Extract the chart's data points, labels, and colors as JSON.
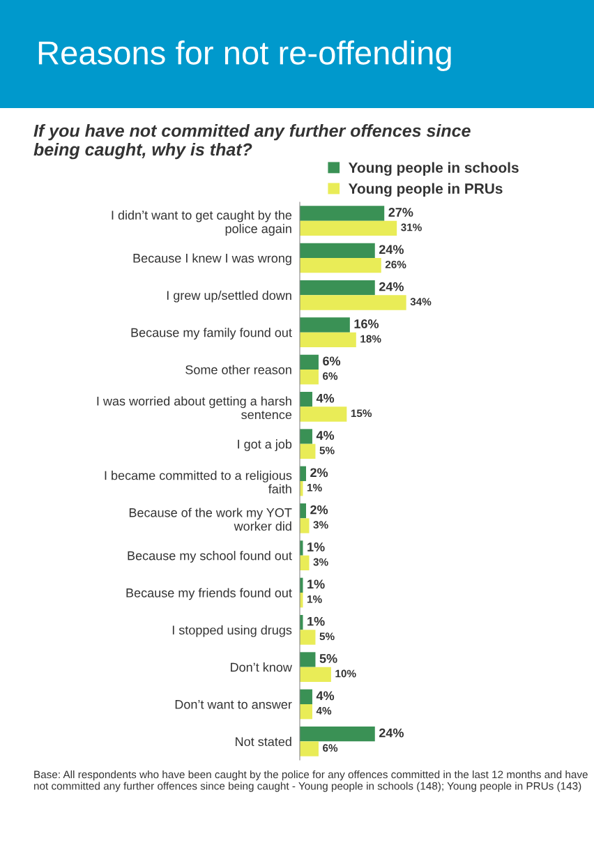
{
  "chart_data": {
    "type": "bar",
    "orientation": "horizontal",
    "title": "Reasons for not re-offending",
    "subtitle": "If you have not committed any further offences since\nbeing caught, why is that?",
    "categories": [
      "I didn’t want to get caught by the\npolice again",
      "Because I knew I was wrong",
      "I grew up/settled down",
      "Because my family found out",
      "Some other reason",
      "I was worried about getting a harsh\nsentence",
      "I got a job",
      "I became committed to a religious\nfaith",
      "Because of the work my YOT\nworker did",
      "Because my school found out",
      "Because my friends found out",
      "I stopped using drugs",
      "Don’t know",
      "Don’t want to answer",
      "Not stated"
    ],
    "series": [
      {
        "name": "Young people in schools",
        "color": "#3a9155",
        "values": [
          27,
          24,
          24,
          16,
          6,
          4,
          4,
          2,
          2,
          1,
          1,
          1,
          5,
          4,
          24
        ],
        "value_labels": [
          "27%",
          "24%",
          "24%",
          "16%",
          "6%",
          "4%",
          "4%",
          "2%",
          "2%",
          "1%",
          "1%",
          "1%",
          "5%",
          "4%",
          "24%"
        ]
      },
      {
        "name": "Young people in PRUs",
        "color": "#e9ec57",
        "values": [
          31,
          26,
          34,
          18,
          6,
          15,
          5,
          1,
          3,
          3,
          1,
          5,
          10,
          4,
          6
        ],
        "value_labels": [
          "31%",
          "26%",
          "34%",
          "18%",
          "6%",
          "15%",
          "5%",
          "1%",
          "3%",
          "3%",
          "1%",
          "5%",
          "10%",
          "4%",
          "6%"
        ]
      }
    ],
    "legend": "top right",
    "grid": false,
    "tick_labels": "y",
    "annotations": [
      "Base: All respondents who have been caught by the police for any offences committed in the last 12 months and have not committed any further offences since being caught - Young people in schools (148); Young people in PRUs (143)"
    ]
  }
}
